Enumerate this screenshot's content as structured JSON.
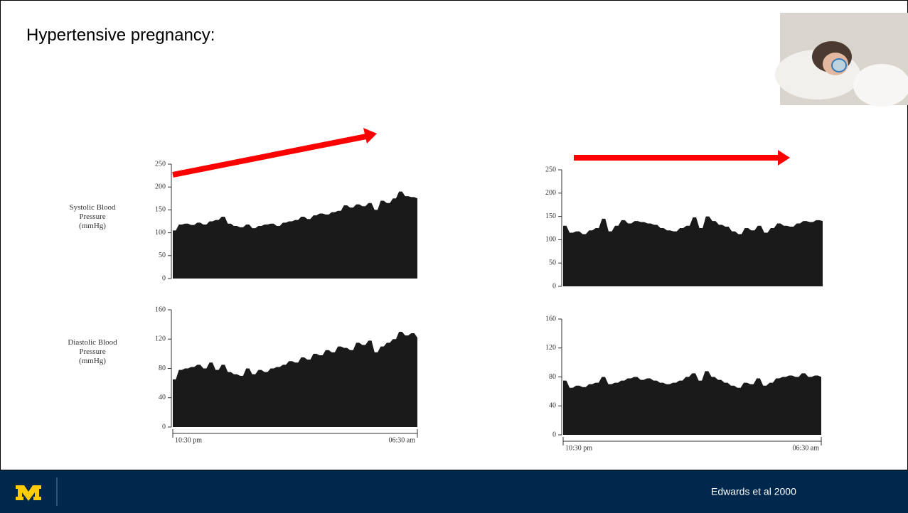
{
  "slide": {
    "title": "Hypertensive pregnancy:",
    "footer": "Edwards et al 2000"
  },
  "chart_data": [
    {
      "type": "area",
      "y_label": "Systolic Blood Pressure (mmHg)",
      "color": "#1a1a1a",
      "values": [
        105,
        118,
        120,
        117,
        122,
        118,
        125,
        128,
        135,
        120,
        115,
        112,
        118,
        110,
        115,
        118,
        120,
        115,
        122,
        125,
        128,
        135,
        130,
        138,
        142,
        140,
        145,
        148,
        160,
        155,
        162,
        158,
        165,
        150,
        170,
        165,
        175,
        190,
        180,
        178,
        175
      ],
      "ylim": [
        0,
        250
      ],
      "yticks": [
        0,
        50,
        100,
        150,
        200,
        250
      ]
    },
    {
      "type": "area",
      "y_label": "Diastolic Blood Pressure (mmHg)",
      "color": "#1a1a1a",
      "categories": [
        "10:30 pm",
        null,
        null,
        null,
        null,
        null,
        null,
        null,
        null,
        null,
        null,
        null,
        null,
        null,
        null,
        null,
        null,
        null,
        null,
        null,
        null,
        null,
        null,
        null,
        null,
        null,
        null,
        null,
        null,
        null,
        null,
        null,
        null,
        null,
        null,
        null,
        null,
        null,
        null,
        null,
        "06:30 am"
      ],
      "values": [
        65,
        78,
        80,
        82,
        85,
        80,
        88,
        78,
        85,
        75,
        72,
        70,
        80,
        72,
        78,
        75,
        80,
        82,
        85,
        90,
        88,
        95,
        92,
        100,
        98,
        105,
        102,
        110,
        108,
        105,
        115,
        112,
        118,
        102,
        110,
        115,
        120,
        130,
        125,
        128,
        122
      ],
      "ylim": [
        0,
        160
      ],
      "yticks": [
        0,
        40,
        80,
        120,
        160
      ]
    },
    {
      "type": "area",
      "color": "#1a1a1a",
      "values": [
        130,
        115,
        118,
        112,
        120,
        125,
        145,
        118,
        130,
        142,
        135,
        140,
        138,
        135,
        132,
        125,
        120,
        118,
        125,
        130,
        148,
        125,
        150,
        140,
        132,
        128,
        118,
        112,
        125,
        120,
        130,
        115,
        125,
        135,
        130,
        128,
        135,
        140,
        138,
        142,
        140
      ],
      "ylim": [
        0,
        250
      ],
      "yticks": [
        0,
        50,
        100,
        150,
        200,
        250
      ]
    },
    {
      "type": "area",
      "color": "#1a1a1a",
      "categories": [
        "10:30 pm",
        null,
        null,
        null,
        null,
        null,
        null,
        null,
        null,
        null,
        null,
        null,
        null,
        null,
        null,
        null,
        null,
        null,
        null,
        null,
        null,
        null,
        null,
        null,
        null,
        null,
        null,
        null,
        null,
        null,
        null,
        null,
        null,
        null,
        null,
        null,
        null,
        null,
        null,
        null,
        "06:30 am"
      ],
      "values": [
        75,
        65,
        68,
        66,
        70,
        72,
        80,
        70,
        72,
        75,
        78,
        80,
        76,
        78,
        75,
        72,
        70,
        72,
        75,
        80,
        85,
        75,
        88,
        80,
        76,
        72,
        68,
        65,
        72,
        70,
        78,
        68,
        72,
        78,
        80,
        82,
        80,
        85,
        80,
        82,
        80
      ],
      "ylim": [
        0,
        160
      ],
      "yticks": [
        0,
        40,
        80,
        120,
        160
      ]
    }
  ]
}
